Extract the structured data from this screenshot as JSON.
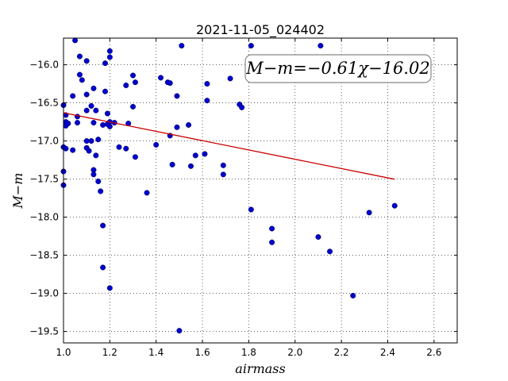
{
  "chart_data": {
    "type": "scatter",
    "title": "2021-11-05_024402",
    "xlabel": "airmass",
    "ylabel": "M−m",
    "xlim": [
      1.0,
      2.7
    ],
    "ylim": [
      -19.65,
      -15.65
    ],
    "y_inverted": true,
    "grid": true,
    "x_ticks": [
      1.0,
      1.2,
      1.4,
      1.6,
      1.8,
      2.0,
      2.2,
      2.4,
      2.6
    ],
    "x_tick_labels": [
      "1.0",
      "1.2",
      "1.4",
      "1.6",
      "1.8",
      "2.0",
      "2.2",
      "2.4",
      "2.6"
    ],
    "y_ticks": [
      -16.0,
      -16.5,
      -17.0,
      -17.5,
      -18.0,
      -18.5,
      -19.0,
      -19.5
    ],
    "y_tick_labels": [
      "−16.0",
      "−16.5",
      "−17.0",
      "−17.5",
      "−18.0",
      "−18.5",
      "−19.0",
      "−19.5"
    ],
    "annotation": "M−m=−0.61χ−16.02",
    "colors": {
      "points": "#0000cc",
      "fit_line": "#cc0000",
      "annotation_border": "#888888"
    },
    "fit_line": {
      "slope": -0.61,
      "intercept": -16.02,
      "x_range": [
        1.0,
        2.43
      ]
    },
    "points": [
      [
        1.0,
        -16.53
      ],
      [
        1.0,
        -17.08
      ],
      [
        1.0,
        -17.4
      ],
      [
        1.0,
        -17.58
      ],
      [
        1.01,
        -16.66
      ],
      [
        1.01,
        -16.75
      ],
      [
        1.01,
        -16.8
      ],
      [
        1.01,
        -17.1
      ],
      [
        1.02,
        -16.77
      ],
      [
        1.04,
        -17.12
      ],
      [
        1.04,
        -16.41
      ],
      [
        1.05,
        -15.68
      ],
      [
        1.06,
        -16.68
      ],
      [
        1.06,
        -16.76
      ],
      [
        1.07,
        -15.89
      ],
      [
        1.07,
        -16.13
      ],
      [
        1.08,
        -16.2
      ],
      [
        1.1,
        -15.95
      ],
      [
        1.1,
        -16.39
      ],
      [
        1.1,
        -16.6
      ],
      [
        1.1,
        -17.0
      ],
      [
        1.1,
        -17.09
      ],
      [
        1.11,
        -17.13
      ],
      [
        1.12,
        -16.54
      ],
      [
        1.12,
        -17.0
      ],
      [
        1.13,
        -16.31
      ],
      [
        1.13,
        -16.76
      ],
      [
        1.13,
        -17.38
      ],
      [
        1.13,
        -17.44
      ],
      [
        1.14,
        -16.6
      ],
      [
        1.14,
        -17.19
      ],
      [
        1.15,
        -17.53
      ],
      [
        1.15,
        -16.98
      ],
      [
        1.16,
        -17.66
      ],
      [
        1.17,
        -16.79
      ],
      [
        1.17,
        -18.11
      ],
      [
        1.17,
        -18.66
      ],
      [
        1.18,
        -15.98
      ],
      [
        1.18,
        -16.35
      ],
      [
        1.19,
        -16.64
      ],
      [
        1.19,
        -16.78
      ],
      [
        1.2,
        -16.75
      ],
      [
        1.2,
        -16.81
      ],
      [
        1.2,
        -15.82
      ],
      [
        1.2,
        -15.9
      ],
      [
        1.2,
        -18.93
      ],
      [
        1.22,
        -16.76
      ],
      [
        1.24,
        -17.08
      ],
      [
        1.27,
        -16.27
      ],
      [
        1.27,
        -17.1
      ],
      [
        1.28,
        -16.77
      ],
      [
        1.3,
        -16.14
      ],
      [
        1.3,
        -16.55
      ],
      [
        1.31,
        -16.23
      ],
      [
        1.31,
        -17.21
      ],
      [
        1.36,
        -17.68
      ],
      [
        1.4,
        -17.05
      ],
      [
        1.42,
        -16.17
      ],
      [
        1.45,
        -16.23
      ],
      [
        1.46,
        -16.24
      ],
      [
        1.46,
        -16.93
      ],
      [
        1.47,
        -17.31
      ],
      [
        1.49,
        -16.82
      ],
      [
        1.49,
        -16.41
      ],
      [
        1.5,
        -19.49
      ],
      [
        1.51,
        -15.75
      ],
      [
        1.54,
        -16.79
      ],
      [
        1.55,
        -17.33
      ],
      [
        1.57,
        -17.19
      ],
      [
        1.61,
        -17.17
      ],
      [
        1.62,
        -16.25
      ],
      [
        1.62,
        -16.47
      ],
      [
        1.69,
        -17.32
      ],
      [
        1.69,
        -17.44
      ],
      [
        1.72,
        -16.18
      ],
      [
        1.76,
        -16.52
      ],
      [
        1.77,
        -16.56
      ],
      [
        1.81,
        -15.75
      ],
      [
        1.81,
        -17.9
      ],
      [
        1.9,
        -18.15
      ],
      [
        1.9,
        -18.33
      ],
      [
        2.1,
        -18.26
      ],
      [
        2.11,
        -15.75
      ],
      [
        2.15,
        -18.45
      ],
      [
        2.25,
        -19.03
      ],
      [
        2.32,
        -17.94
      ],
      [
        2.43,
        -17.85
      ]
    ]
  }
}
